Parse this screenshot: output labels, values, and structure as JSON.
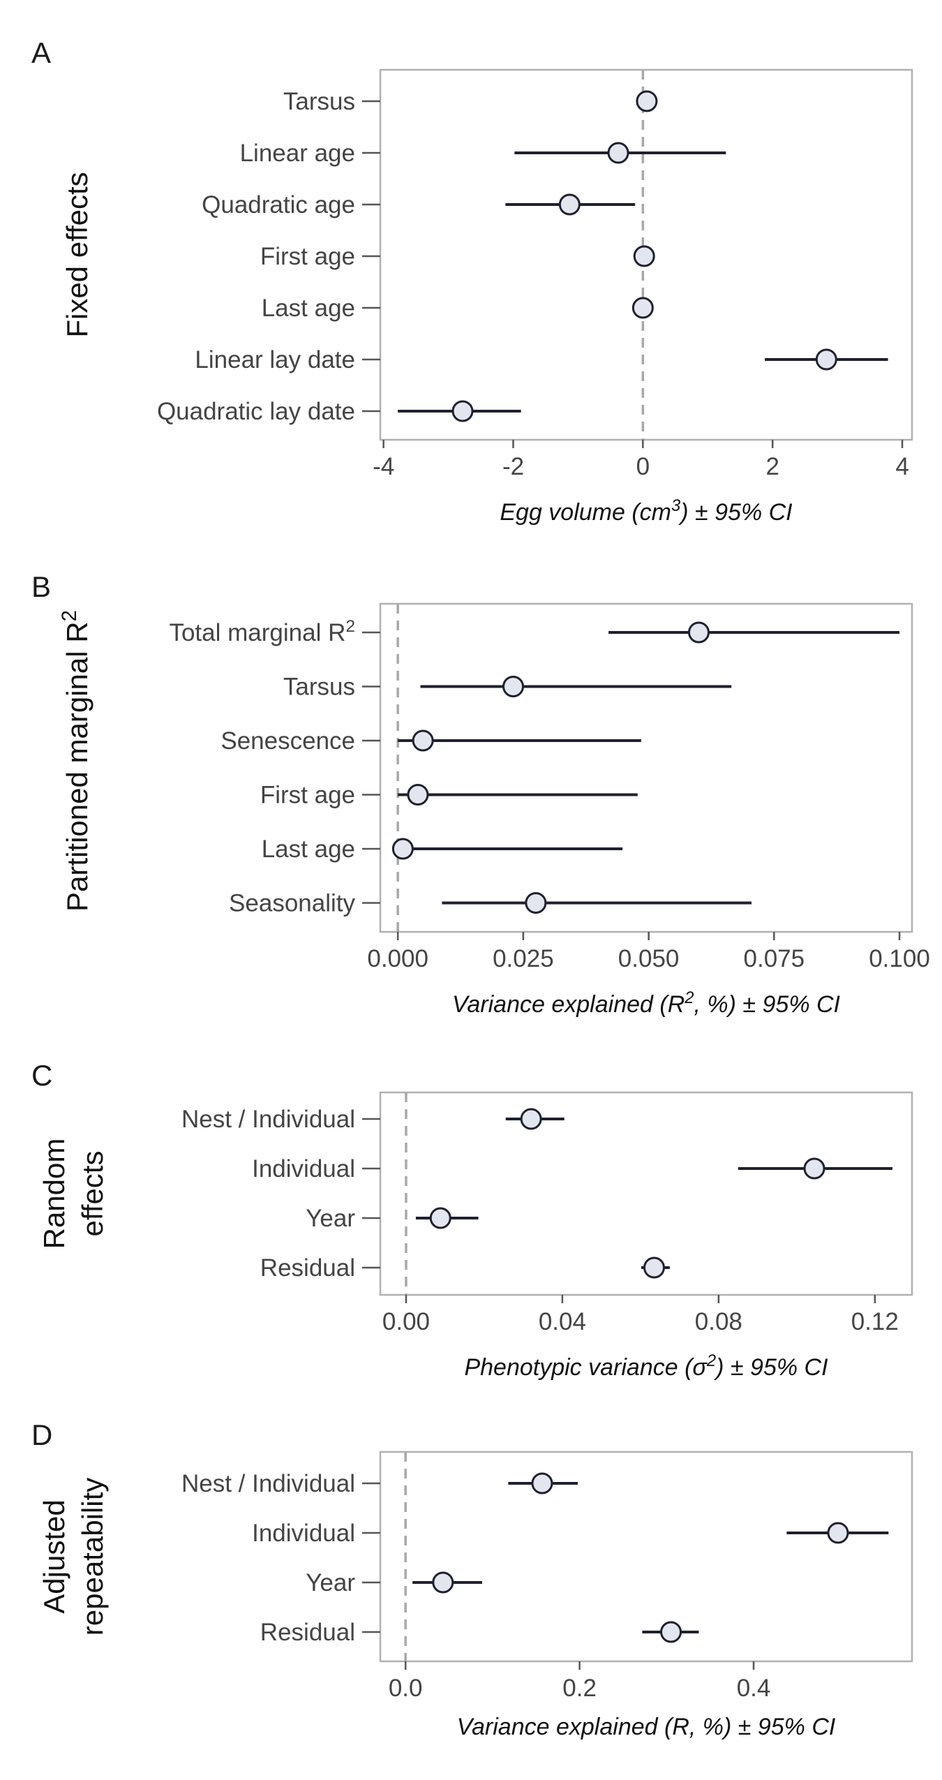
{
  "chart_data": [
    {
      "letter": "A",
      "type": "scatter",
      "ylabel_lines": [
        "Fixed effects"
      ],
      "xlabel": "Egg volume (cm³) ± 95% CI",
      "xlim": [
        -4.05,
        4.15
      ],
      "xticks": [
        -4,
        -2,
        0,
        2,
        4
      ],
      "tick_labels": [
        "-4",
        "-2",
        "0",
        "2",
        "4"
      ],
      "reference_line": 0,
      "categories": [
        "Tarsus",
        "Linear age",
        "Quadratic age",
        "First age",
        "Last age",
        "Linear lay date",
        "Quadratic lay date"
      ],
      "estimates": [
        0.06,
        -0.38,
        -1.13,
        0.02,
        0.0,
        2.83,
        -2.78
      ],
      "lower": [
        0.06,
        -1.98,
        -2.12,
        0.02,
        0.0,
        1.88,
        -3.78
      ],
      "upper": [
        0.06,
        1.28,
        -0.12,
        0.02,
        0.0,
        3.78,
        -1.88
      ]
    },
    {
      "letter": "B",
      "type": "scatter",
      "ylabel_lines": [
        "Partitioned marginal R²"
      ],
      "xlabel": "Variance explained (R², %) ± 95% CI",
      "xlim": [
        -0.0035,
        0.1025
      ],
      "xticks": [
        0,
        0.025,
        0.05,
        0.075,
        0.1
      ],
      "tick_labels": [
        "0.000",
        "0.025",
        "0.050",
        "0.075",
        "0.100"
      ],
      "reference_line": 0,
      "categories": [
        "Total marginal R²",
        "Tarsus",
        "Senescence",
        "First age",
        "Last age",
        "Seasonality"
      ],
      "estimates": [
        0.06,
        0.023,
        0.005,
        0.004,
        0.001,
        0.0275
      ],
      "lower": [
        0.042,
        0.0045,
        0.0,
        0.0,
        0.0,
        0.0088
      ],
      "upper": [
        0.1,
        0.0665,
        0.0485,
        0.0478,
        0.0448,
        0.0705
      ]
    },
    {
      "letter": "C",
      "type": "scatter",
      "ylabel_lines": [
        "Random",
        "effects"
      ],
      "xlabel": "Phenotypic variance (σ²) ± 95% CI",
      "xlim": [
        -0.0066,
        0.1295
      ],
      "xticks": [
        0,
        0.04,
        0.08,
        0.12
      ],
      "tick_labels": [
        "0.00",
        "0.04",
        "0.08",
        "0.12"
      ],
      "reference_line": 0,
      "categories": [
        "Nest / Individual",
        "Individual",
        "Year",
        "Residual"
      ],
      "estimates": [
        0.032,
        0.1045,
        0.0088,
        0.0635
      ],
      "lower": [
        0.0255,
        0.085,
        0.0025,
        0.0602
      ],
      "upper": [
        0.0405,
        0.1245,
        0.0185,
        0.0675
      ]
    },
    {
      "letter": "D",
      "type": "scatter",
      "ylabel_lines": [
        "Adjusted",
        "repeatability"
      ],
      "xlabel": "Variance explained (R, %) ± 95% CI",
      "xlim": [
        -0.029,
        0.582
      ],
      "xticks": [
        0,
        0.2,
        0.4
      ],
      "tick_labels": [
        "0.0",
        "0.2",
        "0.4"
      ],
      "reference_line": 0,
      "categories": [
        "Nest / Individual",
        "Individual",
        "Year",
        "Residual"
      ],
      "estimates": [
        0.157,
        0.497,
        0.043,
        0.305
      ],
      "lower": [
        0.118,
        0.438,
        0.008,
        0.272
      ],
      "upper": [
        0.198,
        0.555,
        0.088,
        0.337
      ]
    }
  ]
}
